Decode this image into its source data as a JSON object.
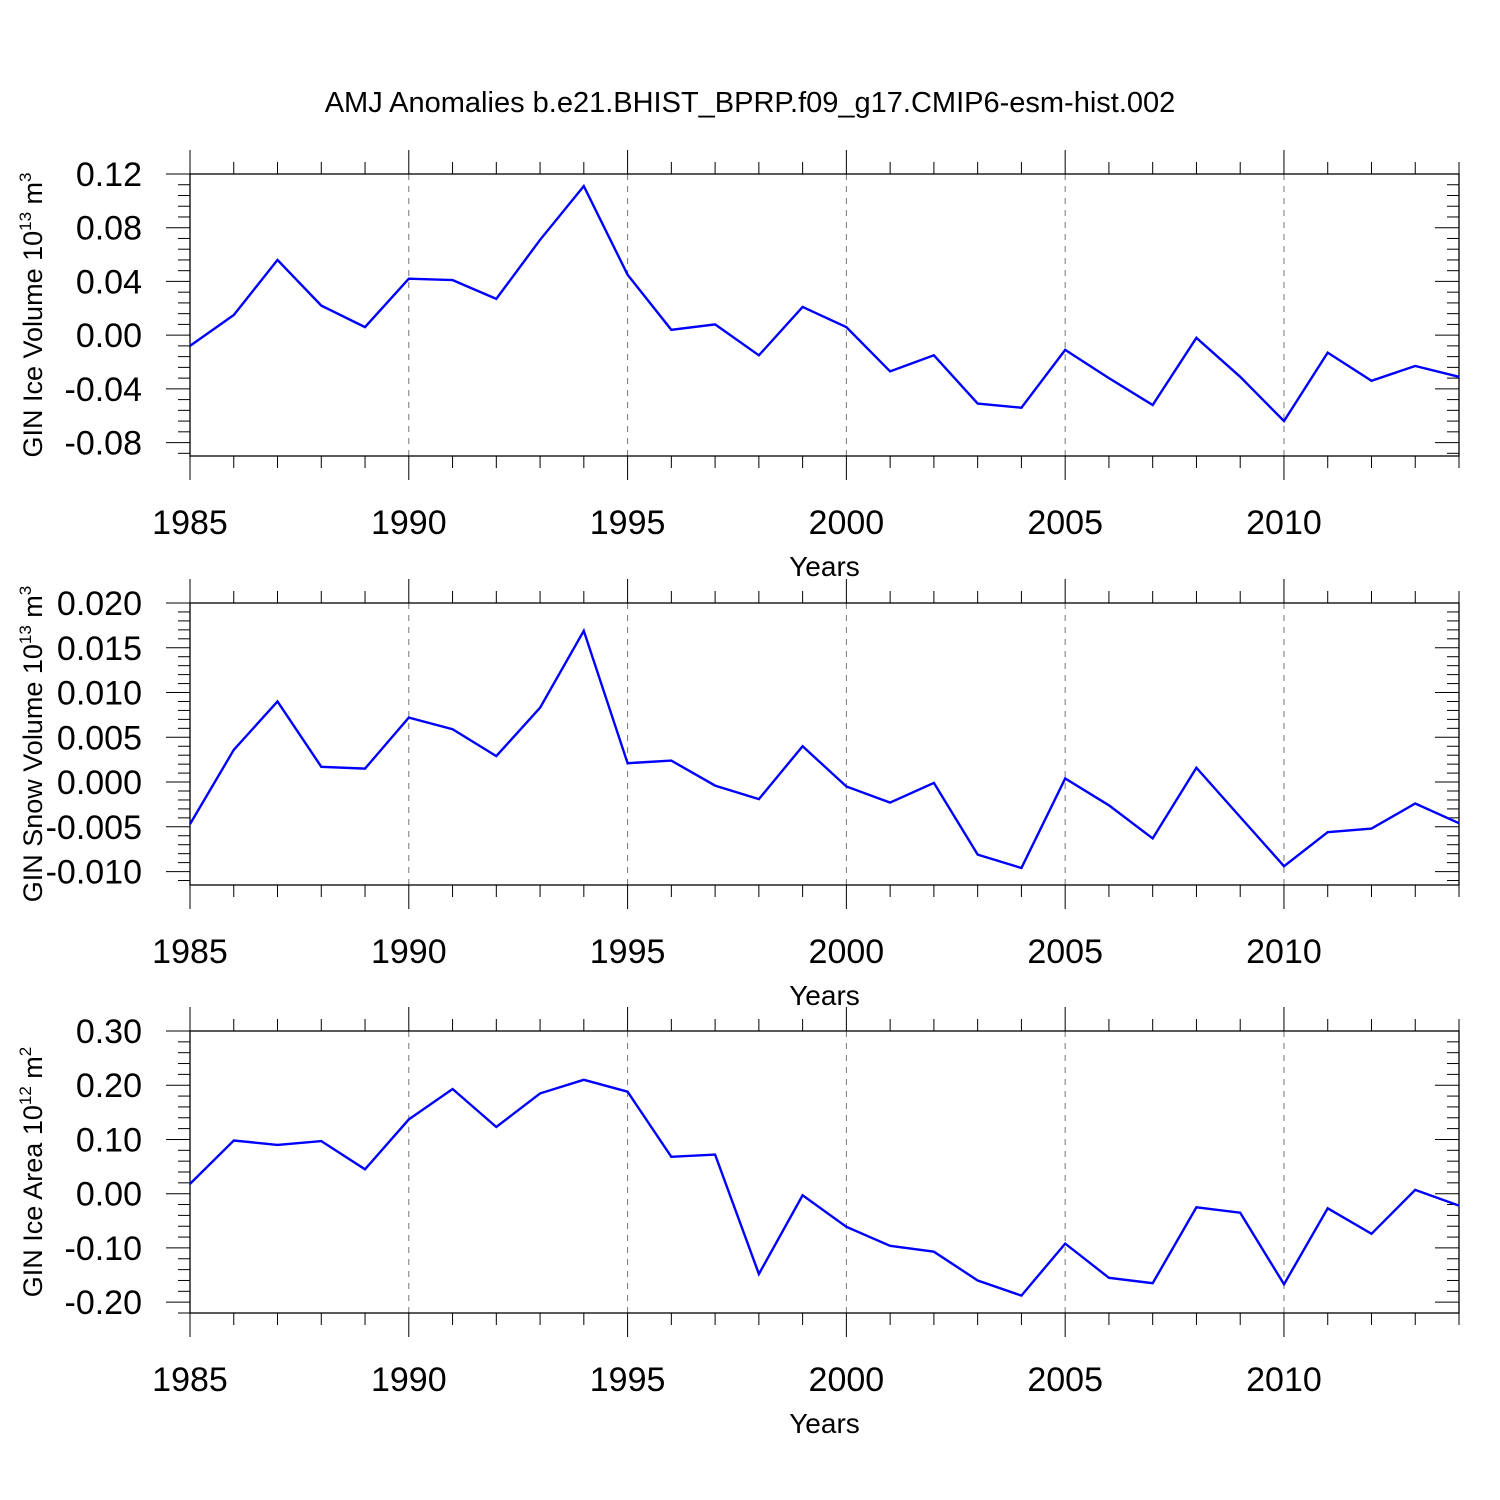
{
  "figure_title": "AMJ Anomalies b.e21.BHIST_BPRP.f09_g17.CMIP6-esm-hist.002",
  "colors": {
    "line": "#0000ff",
    "axis": "#000000",
    "grid": "#777777"
  },
  "chart_data": [
    {
      "type": "line",
      "title": "AMJ Anomalies b.e21.BHIST_BPRP.f09_g17.CMIP6-esm-hist.002",
      "xlabel": "Years",
      "ylabel": {
        "text": "GIN Ice Volume 10",
        "sup": "13",
        "unit": " m",
        "unit_sup": "3"
      },
      "xlim": [
        1985,
        2014
      ],
      "ylim": [
        -0.09,
        0.12
      ],
      "yticks": [
        "-0.08",
        "-0.04",
        "0.00",
        "0.04",
        "0.08",
        "0.12"
      ],
      "xticks": [
        "1985",
        "1990",
        "1995",
        "2000",
        "2005",
        "2010"
      ],
      "grid": "dashed vertical at major x ticks",
      "x": [
        1985,
        1986,
        1987,
        1988,
        1989,
        1990,
        1991,
        1992,
        1993,
        1994,
        1995,
        1996,
        1997,
        1998,
        1999,
        2000,
        2001,
        2002,
        2003,
        2004,
        2005,
        2006,
        2007,
        2008,
        2009,
        2010,
        2011,
        2012,
        2013,
        2014
      ],
      "series": [
        {
          "name": "GIN Ice Volume",
          "values": [
            -0.008,
            0.015,
            0.056,
            0.022,
            0.006,
            0.042,
            0.041,
            0.027,
            0.071,
            0.111,
            0.045,
            0.004,
            0.008,
            -0.015,
            0.021,
            0.006,
            -0.027,
            -0.015,
            -0.051,
            -0.054,
            -0.011,
            -0.032,
            -0.052,
            -0.002,
            -0.031,
            -0.064,
            -0.013,
            -0.034,
            -0.023,
            -0.031
          ]
        }
      ]
    },
    {
      "type": "line",
      "title": "",
      "xlabel": "Years",
      "ylabel": {
        "text": "GIN Snow Volume 10",
        "sup": "13",
        "unit": " m",
        "unit_sup": "3"
      },
      "xlim": [
        1985,
        2014
      ],
      "ylim": [
        -0.0115,
        0.02
      ],
      "yticks": [
        "-0.010",
        "-0.005",
        "0.000",
        "0.005",
        "0.010",
        "0.015",
        "0.020"
      ],
      "xticks": [
        "1985",
        "1990",
        "1995",
        "2000",
        "2005",
        "2010"
      ],
      "grid": "dashed vertical at major x ticks",
      "x": [
        1985,
        1986,
        1987,
        1988,
        1989,
        1990,
        1991,
        1992,
        1993,
        1994,
        1995,
        1996,
        1997,
        1998,
        1999,
        2000,
        2001,
        2002,
        2003,
        2004,
        2005,
        2006,
        2007,
        2008,
        2009,
        2010,
        2011,
        2012,
        2013,
        2014
      ],
      "series": [
        {
          "name": "GIN Snow Volume",
          "values": [
            -0.0047,
            0.0036,
            0.009,
            0.0017,
            0.0015,
            0.0072,
            0.0059,
            0.0029,
            0.0083,
            0.0169,
            0.0021,
            0.0024,
            -0.0004,
            -0.0019,
            0.004,
            -0.0005,
            -0.0023,
            -0.0001,
            -0.0081,
            -0.0096,
            0.0004,
            -0.0026,
            -0.0063,
            0.0016,
            -0.0039,
            -0.0094,
            -0.0056,
            -0.0052,
            -0.0024,
            -0.0046
          ]
        }
      ]
    },
    {
      "type": "line",
      "title": "",
      "xlabel": "Years",
      "ylabel": {
        "text": "GIN Ice Area 10",
        "sup": "12",
        "unit": " m",
        "unit_sup": "2"
      },
      "xlim": [
        1985,
        2014
      ],
      "ylim": [
        -0.22,
        0.3
      ],
      "yticks": [
        "-0.20",
        "-0.10",
        "0.00",
        "0.10",
        "0.20",
        "0.30"
      ],
      "xticks": [
        "1985",
        "1990",
        "1995",
        "2000",
        "2005",
        "2010"
      ],
      "grid": "dashed vertical at major x ticks",
      "x": [
        1985,
        1986,
        1987,
        1988,
        1989,
        1990,
        1991,
        1992,
        1993,
        1994,
        1995,
        1996,
        1997,
        1998,
        1999,
        2000,
        2001,
        2002,
        2003,
        2004,
        2005,
        2006,
        2007,
        2008,
        2009,
        2010,
        2011,
        2012,
        2013,
        2014
      ],
      "series": [
        {
          "name": "GIN Ice Area",
          "values": [
            0.018,
            0.098,
            0.09,
            0.097,
            0.045,
            0.137,
            0.193,
            0.123,
            0.185,
            0.21,
            0.188,
            0.068,
            0.072,
            -0.148,
            -0.003,
            -0.061,
            -0.096,
            -0.107,
            -0.16,
            -0.188,
            -0.092,
            -0.155,
            -0.165,
            -0.025,
            -0.035,
            -0.167,
            -0.027,
            -0.074,
            0.007,
            -0.022
          ]
        }
      ]
    }
  ]
}
